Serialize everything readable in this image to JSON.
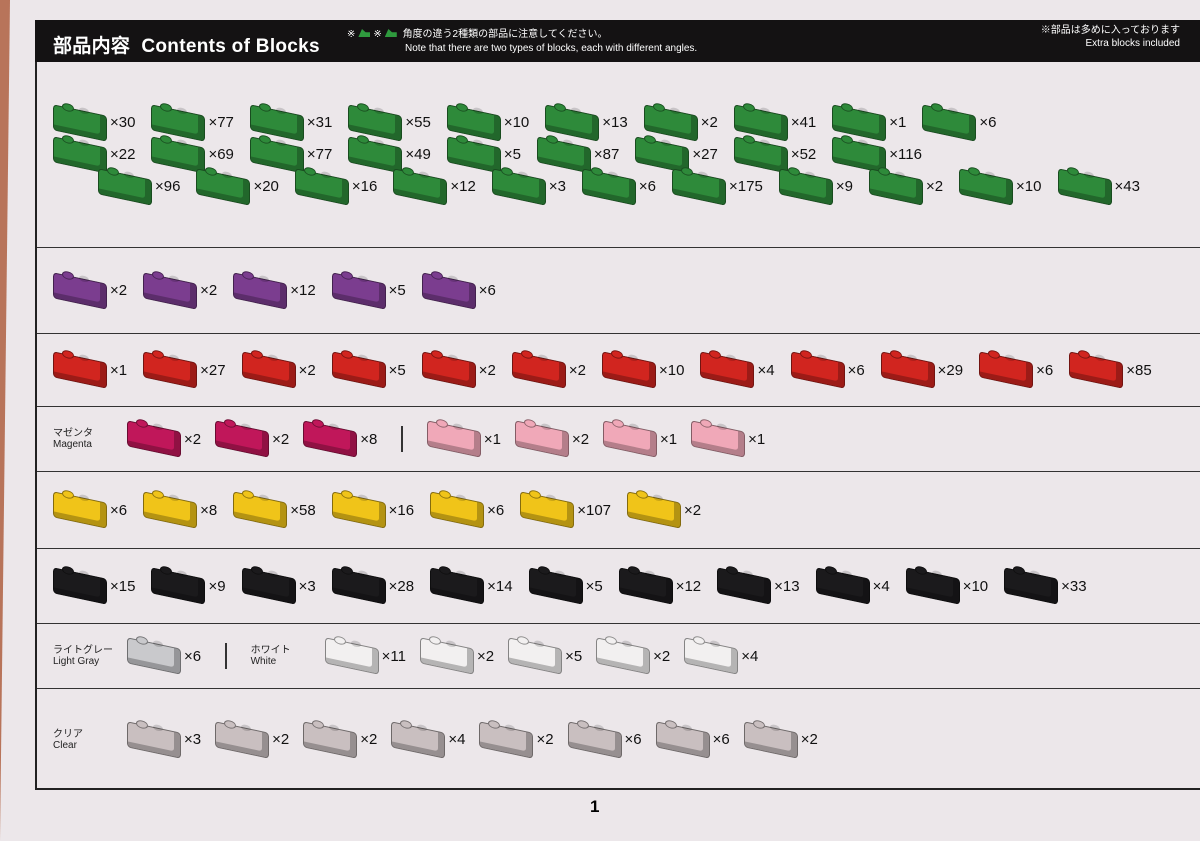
{
  "header": {
    "title_ja": "部品内容",
    "title_en": "Contents of Blocks",
    "note_ja": "角度の違う2種類の部品に注意してください。",
    "note_en": "Note that there are two types of blocks, each with different angles.",
    "note_mark": "※",
    "extra_ja": "※部品は多めに入っております",
    "extra_en": "Extra blocks included"
  },
  "colors": {
    "green": "#2e8a3a",
    "purple": "#7b3d8f",
    "red": "#d1251f",
    "magenta": "#c0175a",
    "pink": "#f0a8b8",
    "yellow": "#f0c419",
    "black": "#1b1a1c",
    "lightgray": "#c9c9cc",
    "white": "#f2f0f0",
    "clear": "#c9bfc0"
  },
  "sections": [
    {
      "color": "green",
      "rows": [
        [
          "×30",
          "×77",
          "×31",
          "×55",
          "×10",
          "×13",
          "×2",
          "×41",
          "×1",
          "×6"
        ],
        [
          "×22",
          "×69",
          "×77",
          "×49",
          "×5",
          "×87",
          "×27",
          "×52",
          "×116"
        ],
        [
          "×96",
          "×20",
          "×16",
          "×12",
          "×3",
          "×6",
          "×175",
          "×9",
          "×2",
          "×10",
          "×43"
        ]
      ]
    },
    {
      "color": "purple",
      "rows": [
        [
          "×2",
          "×2",
          "×12",
          "×5",
          "×6"
        ]
      ]
    },
    {
      "color": "red",
      "rows": [
        [
          "×1",
          "×27",
          "×2",
          "×5",
          "×2",
          "×2",
          "×10",
          "×4",
          "×6",
          "×29",
          "×6",
          "×85"
        ]
      ]
    },
    {
      "groups": [
        {
          "label_ja": "マゼンタ",
          "label_en": "Magenta",
          "color": "magenta",
          "items": [
            "×2",
            "×2",
            "×8"
          ]
        },
        {
          "label_ja": "",
          "label_en": "",
          "color": "pink",
          "items": [
            "×1",
            "×2",
            "×1",
            "×1"
          ]
        }
      ]
    },
    {
      "color": "yellow",
      "rows": [
        [
          "×6",
          "×8",
          "×58",
          "×16",
          "×6",
          "×107",
          "×2"
        ]
      ]
    },
    {
      "color": "black",
      "rows": [
        [
          "×15",
          "×9",
          "×3",
          "×28",
          "×14",
          "×5",
          "×12",
          "×13",
          "×4",
          "×10",
          "×33"
        ]
      ]
    },
    {
      "groups": [
        {
          "label_ja": "ライトグレー",
          "label_en": "Light Gray",
          "color": "lightgray",
          "items": [
            "×6"
          ]
        },
        {
          "label_ja": "ホワイト",
          "label_en": "White",
          "color": "white",
          "items": [
            "×11",
            "×2",
            "×5",
            "×2",
            "×4"
          ]
        }
      ]
    },
    {
      "groups": [
        {
          "label_ja": "クリア",
          "label_en": "Clear",
          "color": "clear",
          "items": [
            "×3",
            "×2",
            "×2",
            "×4",
            "×2",
            "×6",
            "×6",
            "×2"
          ]
        }
      ]
    }
  ],
  "page_number": "1"
}
